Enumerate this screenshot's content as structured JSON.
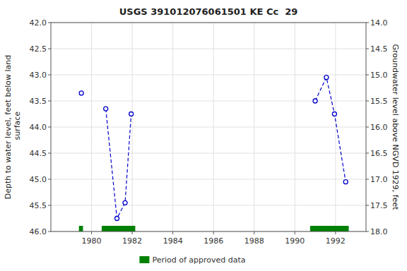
{
  "chart_data": {
    "type": "line",
    "title": "USGS 391012076061501 KE Cc  29",
    "y_label": "Depth to water level, feet below land\n surface",
    "y2_label": "Groundwater level above NGVD 1929, feet",
    "xlim": [
      1978.0,
      1993.5
    ],
    "xticks": [
      1980,
      1982,
      1984,
      1986,
      1988,
      1990,
      1992
    ],
    "ylim": [
      46.0,
      42.0
    ],
    "yticks": [
      {
        "value": 42.0,
        "label": "42.0"
      },
      42.5,
      {
        "value": 43.0,
        "label": "43.0"
      },
      43.5,
      {
        "value": 44.0,
        "label": "44.0"
      },
      44.5,
      {
        "value": 45.0,
        "label": "45.0"
      },
      45.5,
      {
        "value": 46.0,
        "label": "46.0"
      }
    ],
    "y2lim": [
      18.0,
      14.0
    ],
    "y2ticks": [
      {
        "value": 18.0,
        "label": "18.0"
      },
      17.5,
      {
        "value": 17.0,
        "label": "17.0"
      },
      16.5,
      {
        "value": 16.0,
        "label": "16.0"
      },
      15.5,
      {
        "value": 15.0,
        "label": "15.0"
      },
      14.5,
      {
        "value": 14.0,
        "label": "14.0"
      }
    ],
    "grid": true,
    "legend": "bottom",
    "series": [
      {
        "color": "#0000cc",
        "marker": "circle",
        "line_style": "dashed",
        "x": [
          1979.5,
          null,
          1980.7,
          1981.25,
          1981.65,
          1981.95,
          null,
          1991.0,
          1991.55,
          1991.95,
          1992.5
        ],
        "values": [
          43.35,
          null,
          43.65,
          45.75,
          45.45,
          43.75,
          null,
          43.5,
          43.05,
          43.75,
          45.05
        ]
      },
      {
        "name": "Period of approved data",
        "type": "span",
        "color": "#008000",
        "x_start": [
          1979.38,
          1980.5,
          1990.75
        ],
        "x_end": [
          1979.58,
          1982.15,
          1992.65
        ]
      }
    ]
  }
}
